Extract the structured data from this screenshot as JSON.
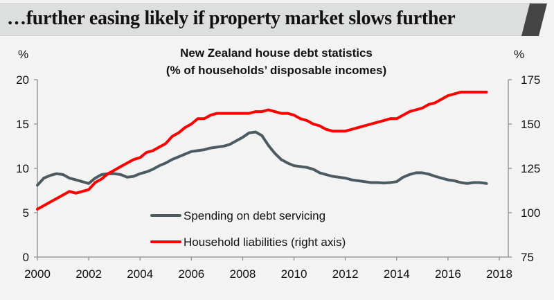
{
  "banner": {
    "title": "…further easing likely if property market slows further"
  },
  "chart_data": {
    "type": "line",
    "title": "New Zealand house debt statistics",
    "subtitle": "(% of households’ disposable incomes)",
    "left_axis": {
      "label": "%",
      "ylim": [
        0,
        20
      ],
      "ticks": [
        "0",
        "5",
        "10",
        "15",
        "20"
      ]
    },
    "right_axis": {
      "label": "%",
      "ylim": [
        75,
        175
      ],
      "ticks": [
        "75",
        "100",
        "125",
        "150",
        "175"
      ]
    },
    "x_axis": {
      "xlim": [
        2000,
        2018
      ],
      "ticks": [
        "2000",
        "2002",
        "2004",
        "2006",
        "2008",
        "2010",
        "2012",
        "2014",
        "2016",
        "2018"
      ]
    },
    "grid": false,
    "legend_position": "bottom-center",
    "series": [
      {
        "name": "Spending on debt servicing",
        "axis": "left",
        "color": "#4d5a62",
        "x": [
          2000,
          2000.25,
          2000.5,
          2000.75,
          2001,
          2001.25,
          2001.5,
          2001.75,
          2002,
          2002.25,
          2002.5,
          2002.75,
          2003,
          2003.25,
          2003.5,
          2003.75,
          2004,
          2004.25,
          2004.5,
          2004.75,
          2005,
          2005.25,
          2005.5,
          2005.75,
          2006,
          2006.25,
          2006.5,
          2006.75,
          2007,
          2007.25,
          2007.5,
          2007.75,
          2008,
          2008.25,
          2008.5,
          2008.75,
          2009,
          2009.25,
          2009.5,
          2009.75,
          2010,
          2010.25,
          2010.5,
          2010.75,
          2011,
          2011.25,
          2011.5,
          2011.75,
          2012,
          2012.25,
          2012.5,
          2012.75,
          2013,
          2013.25,
          2013.5,
          2013.75,
          2014,
          2014.25,
          2014.5,
          2014.75,
          2015,
          2015.25,
          2015.5,
          2015.75,
          2016,
          2016.25,
          2016.5,
          2016.75,
          2017,
          2017.25,
          2017.5
        ],
        "values": [
          8.1,
          8.9,
          9.2,
          9.4,
          9.3,
          8.9,
          8.7,
          8.5,
          8.3,
          8.9,
          9.3,
          9.4,
          9.4,
          9.3,
          9.0,
          9.1,
          9.4,
          9.6,
          9.9,
          10.3,
          10.6,
          11.0,
          11.3,
          11.6,
          11.9,
          12.0,
          12.1,
          12.3,
          12.4,
          12.5,
          12.7,
          13.1,
          13.5,
          14.0,
          14.1,
          13.7,
          12.6,
          11.7,
          11.0,
          10.6,
          10.3,
          10.2,
          10.1,
          9.9,
          9.5,
          9.3,
          9.1,
          9.0,
          8.9,
          8.7,
          8.6,
          8.5,
          8.4,
          8.4,
          8.35,
          8.4,
          8.5,
          9.0,
          9.3,
          9.5,
          9.5,
          9.35,
          9.1,
          8.9,
          8.7,
          8.6,
          8.4,
          8.3,
          8.4,
          8.4,
          8.3
        ]
      },
      {
        "name": "Household liabilities (right axis)",
        "axis": "right",
        "color": "#ff0000",
        "x": [
          2000,
          2000.25,
          2000.5,
          2000.75,
          2001,
          2001.25,
          2001.5,
          2001.75,
          2002,
          2002.25,
          2002.5,
          2002.75,
          2003,
          2003.25,
          2003.5,
          2003.75,
          2004,
          2004.25,
          2004.5,
          2004.75,
          2005,
          2005.25,
          2005.5,
          2005.75,
          2006,
          2006.25,
          2006.5,
          2006.75,
          2007,
          2007.25,
          2007.5,
          2007.75,
          2008,
          2008.25,
          2008.5,
          2008.75,
          2009,
          2009.25,
          2009.5,
          2009.75,
          2010,
          2010.25,
          2010.5,
          2010.75,
          2011,
          2011.25,
          2011.5,
          2011.75,
          2012,
          2012.25,
          2012.5,
          2012.75,
          2013,
          2013.25,
          2013.5,
          2013.75,
          2014,
          2014.25,
          2014.5,
          2014.75,
          2015,
          2015.25,
          2015.5,
          2015.75,
          2016,
          2016.25,
          2016.5,
          2016.75,
          2017,
          2017.25,
          2017.5
        ],
        "values": [
          102,
          104,
          106,
          108,
          110,
          112,
          111,
          112,
          113,
          117,
          119,
          122,
          124,
          126,
          128,
          130,
          131,
          134,
          135,
          137,
          139,
          143,
          145,
          148,
          150,
          153,
          153,
          155,
          156,
          156,
          156,
          156,
          156,
          156,
          157,
          157,
          158,
          157,
          156,
          156,
          155,
          153,
          152,
          150,
          149,
          147,
          146,
          146,
          146,
          147,
          148,
          149,
          150,
          151,
          152,
          153,
          153,
          155,
          157,
          158,
          159,
          161,
          162,
          164,
          166,
          167,
          168,
          168,
          168,
          168,
          168
        ]
      }
    ]
  }
}
